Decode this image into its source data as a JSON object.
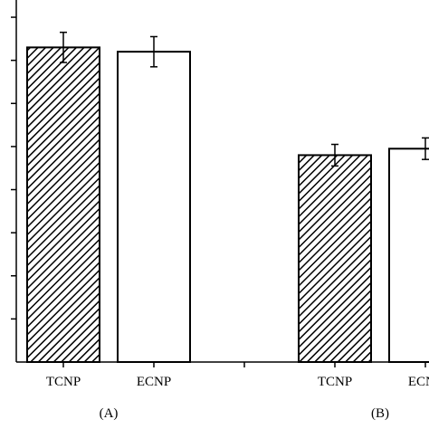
{
  "chart_data": {
    "type": "bar",
    "title": "",
    "xlabel": "",
    "ylabel": "",
    "ylim": [
      0,
      8.4
    ],
    "grid": false,
    "legend": "none",
    "groups": [
      {
        "label": "(A)",
        "bars": [
          {
            "category": "TCNP",
            "value": 7.3,
            "error": 0.35,
            "fill": "hatched"
          },
          {
            "category": "ECNP",
            "value": 7.2,
            "error": 0.35,
            "fill": "white"
          }
        ]
      },
      {
        "label": "(B)",
        "bars": [
          {
            "category": "TCNP",
            "value": 4.8,
            "error": 0.25,
            "fill": "hatched"
          },
          {
            "category": "ECNP",
            "value": 4.95,
            "error": 0.25,
            "fill": "white"
          }
        ]
      }
    ],
    "bar_category_labels": [
      "TCNP",
      "ECNP",
      "TCNP",
      "ECNP"
    ],
    "colors": {
      "axis": "#000000",
      "hatch": "#000000",
      "bar_outline": "#000000",
      "open_fill": "#ffffff"
    }
  }
}
